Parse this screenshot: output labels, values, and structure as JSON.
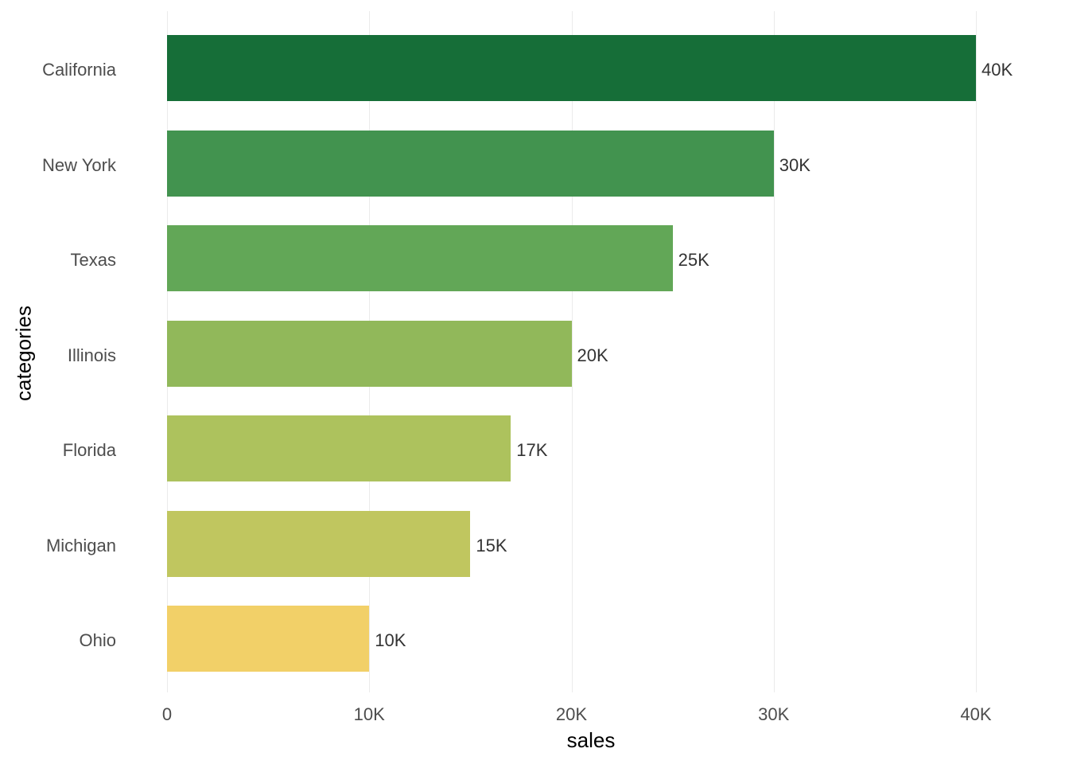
{
  "chart_data": {
    "type": "bar",
    "orientation": "horizontal",
    "title": "",
    "xlabel": "sales",
    "ylabel": "categories",
    "categories": [
      "California",
      "New York",
      "Texas",
      "Illinois",
      "Florida",
      "Michigan",
      "Ohio"
    ],
    "values": [
      40000,
      30000,
      25000,
      20000,
      17000,
      15000,
      10000
    ],
    "value_labels": [
      "40K",
      "30K",
      "25K",
      "20K",
      "17K",
      "15K",
      "10K"
    ],
    "colors": [
      "#166e38",
      "#42934f",
      "#62a757",
      "#91b85a",
      "#adc25d",
      "#c0c65f",
      "#f2d068"
    ],
    "xlim": [
      0,
      40000
    ],
    "x_ticks": [
      "0",
      "10K",
      "20K",
      "30K",
      "40K"
    ],
    "grid": "vertical major gridlines",
    "legend": "none"
  }
}
